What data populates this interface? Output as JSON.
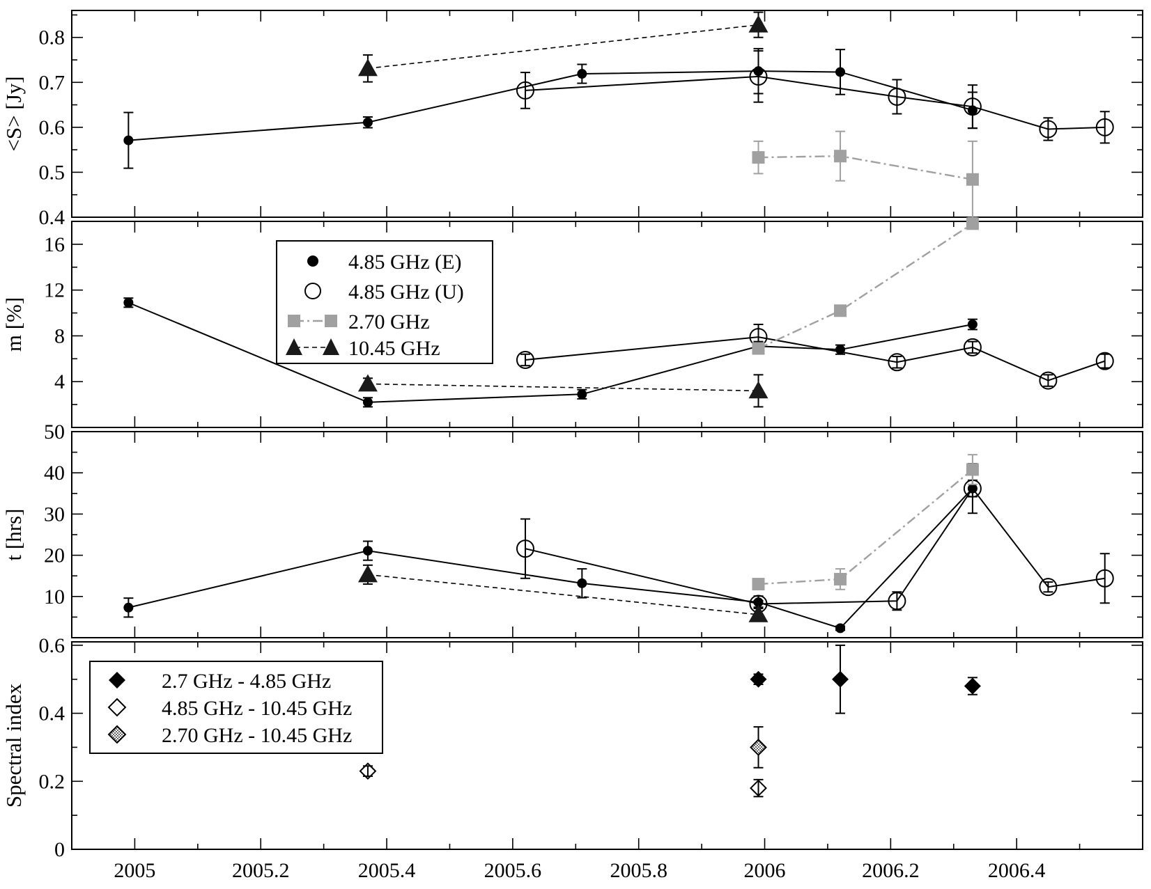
{
  "chart_data": [
    {
      "type": "line",
      "panel": "flux-density",
      "ylabel": "<S> [Jy]",
      "xlim": [
        2004.9,
        2006.6
      ],
      "ylim": [
        0.4,
        0.86
      ],
      "yticks": [
        0.4,
        0.5,
        0.6,
        0.7,
        0.8
      ],
      "ytick_labels": [
        "0.4",
        "0.5",
        "0.6",
        "0.7",
        "0.8"
      ],
      "series": [
        {
          "key": "E",
          "x": [
            2004.99,
            2005.37,
            2005.71,
            2005.99,
            2006.12,
            2006.33
          ],
          "y": [
            0.571,
            0.611,
            0.719,
            0.725,
            0.723,
            0.638
          ],
          "err": [
            0.062,
            0.012,
            0.021,
            0.05,
            0.05,
            0.04
          ]
        },
        {
          "key": "U",
          "x": [
            2005.62,
            2005.99,
            2006.21,
            2006.33,
            2006.45,
            2006.54
          ],
          "y": [
            0.682,
            0.713,
            0.668,
            0.646,
            0.596,
            0.6
          ],
          "err": [
            0.04,
            0.057,
            0.038,
            0.048,
            0.025,
            0.035
          ]
        },
        {
          "key": "G27",
          "x": [
            2005.99,
            2006.12,
            2006.33
          ],
          "y": [
            0.533,
            0.536,
            0.484
          ],
          "err": [
            0.036,
            0.055,
            0.085
          ]
        },
        {
          "key": "G1045",
          "x": [
            2005.37,
            2005.99
          ],
          "y": [
            0.731,
            0.828
          ],
          "err": [
            0.03,
            0.028
          ]
        }
      ]
    },
    {
      "type": "line",
      "panel": "modulation-index",
      "ylabel": "m [%]",
      "xlim": [
        2004.9,
        2006.6
      ],
      "ylim": [
        0,
        18
      ],
      "yticks": [
        0,
        4,
        8,
        12,
        16
      ],
      "ytick_labels": [
        "",
        "4",
        "8",
        "12",
        "16"
      ],
      "series": [
        {
          "key": "E",
          "x": [
            2004.99,
            2005.37,
            2005.71,
            2005.99,
            2006.12,
            2006.33
          ],
          "y": [
            10.9,
            2.2,
            2.9,
            7.1,
            6.8,
            9.0
          ],
          "err": [
            0.4,
            0.4,
            0.4,
            0.4,
            0.4,
            0.45
          ]
        },
        {
          "key": "U",
          "x": [
            2005.62,
            2005.99,
            2006.21,
            2006.33,
            2006.45,
            2006.54
          ],
          "y": [
            5.9,
            7.9,
            5.7,
            7.0,
            4.1,
            5.8
          ],
          "err": [
            0.5,
            1.1,
            0.5,
            0.5,
            0.5,
            0.6
          ]
        },
        {
          "key": "G27",
          "x": [
            2005.99,
            2006.12,
            2006.33
          ],
          "y": [
            6.9,
            10.2,
            17.8
          ],
          "err": [
            0,
            0,
            0
          ]
        },
        {
          "key": "G1045",
          "x": [
            2005.37,
            2005.99
          ],
          "y": [
            3.8,
            3.2
          ],
          "err": [
            0.5,
            1.4
          ]
        }
      ]
    },
    {
      "type": "line",
      "panel": "timescale",
      "ylabel": "t [hrs]",
      "xlim": [
        2004.9,
        2006.6
      ],
      "ylim": [
        0,
        50
      ],
      "yticks": [
        0,
        10,
        20,
        30,
        40,
        50
      ],
      "ytick_labels": [
        "",
        "10",
        "20",
        "30",
        "40",
        "50"
      ],
      "series": [
        {
          "key": "E",
          "x": [
            2004.99,
            2005.37,
            2005.71,
            2005.99,
            2006.12,
            2006.33
          ],
          "y": [
            7.3,
            21.1,
            13.2,
            8.6,
            2.3,
            36.2
          ],
          "err": [
            2.3,
            2.3,
            3.5,
            1.5,
            0.5,
            6.0
          ]
        },
        {
          "key": "U",
          "x": [
            2005.62,
            2005.99,
            2006.21,
            2006.33,
            2006.45,
            2006.54
          ],
          "y": [
            21.6,
            8.2,
            8.9,
            36.2,
            12.3,
            14.4
          ],
          "err": [
            7.2,
            0.8,
            2.2,
            2.0,
            1.2,
            6.0
          ]
        },
        {
          "key": "G27",
          "x": [
            2005.99,
            2006.12,
            2006.33
          ],
          "y": [
            13.0,
            14.2,
            40.8
          ],
          "err": [
            0,
            2.5,
            3.6
          ]
        },
        {
          "key": "G1045",
          "x": [
            2005.37,
            2005.99
          ],
          "y": [
            15.3,
            5.6
          ],
          "err": [
            2.3,
            0
          ]
        }
      ]
    },
    {
      "type": "scatter",
      "panel": "spectral-index",
      "ylabel": "Spectral index",
      "xlim": [
        2004.9,
        2006.6
      ],
      "ylim": [
        0,
        0.61
      ],
      "yticks": [
        0,
        0.2,
        0.4,
        0.6
      ],
      "ytick_labels": [
        "0",
        "0.2",
        "0.4",
        "0.6"
      ],
      "xticks": [
        2005,
        2005.2,
        2005.4,
        2005.6,
        2005.8,
        2006,
        2006.2,
        2006.4
      ],
      "xtick_labels": [
        "2005",
        "2005.2",
        "2005.4",
        "2005.6",
        "2005.8",
        "2006",
        "2006.2",
        "2006.4"
      ],
      "series": [
        {
          "key": "A1",
          "x": [
            2005.99,
            2006.12,
            2006.33
          ],
          "y": [
            0.5,
            0.5,
            0.48
          ],
          "err": [
            0.015,
            0.1,
            0.025
          ]
        },
        {
          "key": "A2",
          "x": [
            2005.37,
            2005.99
          ],
          "y": [
            0.23,
            0.18
          ],
          "err": [
            0.015,
            0.025
          ]
        },
        {
          "key": "A3",
          "x": [
            2005.99
          ],
          "y": [
            0.3
          ],
          "err": [
            0.06
          ]
        }
      ]
    }
  ],
  "legend_top": {
    "items": [
      {
        "label": "4.85 GHz (E)",
        "key": "E"
      },
      {
        "label": "4.85 GHz (U)",
        "key": "U"
      },
      {
        "label": "2.70 GHz",
        "key": "G27"
      },
      {
        "label": "10.45 GHz",
        "key": "G1045"
      }
    ]
  },
  "legend_bottom": {
    "items": [
      {
        "label": "2.7 GHz - 4.85 GHz",
        "key": "A1"
      },
      {
        "label": "4.85 GHz - 10.45 GHz",
        "key": "A2"
      },
      {
        "label": "2.70 GHz - 10.45 GHz",
        "key": "A3"
      }
    ]
  },
  "colors": {
    "black": "#000000",
    "marker_dark": "#1a1a1a",
    "gray": "#a0a0a0"
  }
}
